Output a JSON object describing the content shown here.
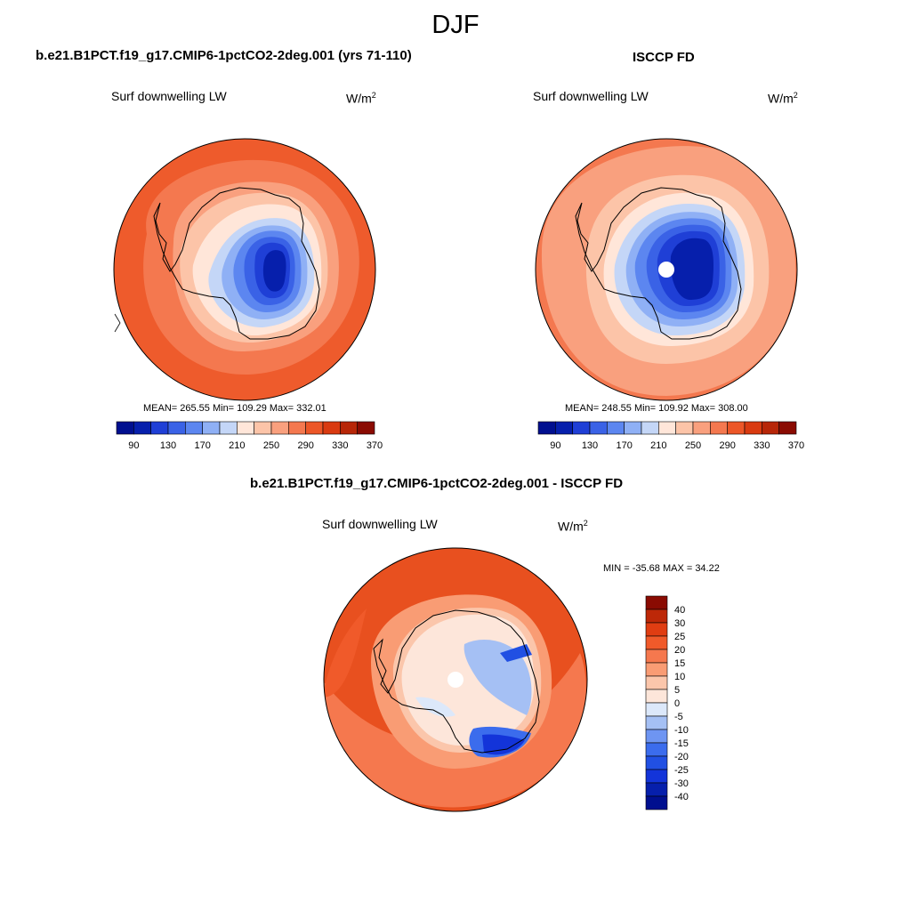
{
  "page": {
    "title": "DJF"
  },
  "colors": {
    "abs_levels": [
      "#000f8f",
      "#061fac",
      "#1f3fd6",
      "#3a62e6",
      "#5c86f0",
      "#8fb0f5",
      "#c4d6f7",
      "#ffe6d9",
      "#fcc4a8",
      "#f9a07e",
      "#f4784f",
      "#ec5627",
      "#d93a10",
      "#b72608",
      "#8a0b02"
    ],
    "diff_levels": [
      "#000f8f",
      "#061fac",
      "#1334d9",
      "#2150e3",
      "#3b6ced",
      "#6e95f2",
      "#a5c0f4",
      "#dce8fa",
      "#fde6da",
      "#fbc6ab",
      "#f99c74",
      "#f5784e",
      "#f05a2a",
      "#e03d12",
      "#bd2808",
      "#8a0b02"
    ],
    "land_outline": "#000000"
  },
  "panels": {
    "model": {
      "title": "b.e21.B1PCT.f19_g17.CMIP6-1pctCO2-2deg.001 (yrs 71-110)",
      "var_label": "Surf downwelling LW",
      "units_base": "W/m",
      "units_exp": "2",
      "stats": "MEAN= 265.55  Min= 109.29  Max= 332.01"
    },
    "obs": {
      "title": "ISCCP FD",
      "var_label": "Surf downwelling LW",
      "units_base": "W/m",
      "units_exp": "2",
      "stats": "MEAN= 248.55  Min= 109.92  Max= 308.00"
    },
    "diff": {
      "title": "b.e21.B1PCT.f19_g17.CMIP6-1pctCO2-2deg.001 - ISCCP FD",
      "var_label": "Surf downwelling LW",
      "units_base": "W/m",
      "units_exp": "2",
      "stats": "MIN = -35.68 MAX =  34.22"
    }
  },
  "chart_data": [
    {
      "type": "heatmap",
      "projection": "south polar stereographic",
      "title": "b.e21.B1PCT.f19_g17.CMIP6-1pctCO2-2deg.001 (yrs 71-110)",
      "variable": "Surf downwelling LW",
      "units": "W/m2",
      "mean": 265.55,
      "min": 109.29,
      "max": 332.01,
      "colorbar_ticks": [
        "90",
        "130",
        "170",
        "210",
        "250",
        "290",
        "330",
        "370"
      ],
      "colorbar_orientation": "horizontal"
    },
    {
      "type": "heatmap",
      "projection": "south polar stereographic",
      "title": "ISCCP FD",
      "variable": "Surf downwelling LW",
      "units": "W/m2",
      "mean": 248.55,
      "min": 109.92,
      "max": 308.0,
      "colorbar_ticks": [
        "90",
        "130",
        "170",
        "210",
        "250",
        "290",
        "330",
        "370"
      ],
      "colorbar_orientation": "horizontal"
    },
    {
      "type": "heatmap",
      "projection": "south polar stereographic",
      "title": "b.e21.B1PCT.f19_g17.CMIP6-1pctCO2-2deg.001 - ISCCP FD",
      "variable": "Surf downwelling LW",
      "units": "W/m2",
      "min": -35.68,
      "max": 34.22,
      "colorbar_ticks": [
        "40",
        "30",
        "25",
        "20",
        "15",
        "10",
        "5",
        "0",
        "-5",
        "-10",
        "-15",
        "-20",
        "-25",
        "-30",
        "-40"
      ],
      "colorbar_orientation": "vertical"
    }
  ]
}
